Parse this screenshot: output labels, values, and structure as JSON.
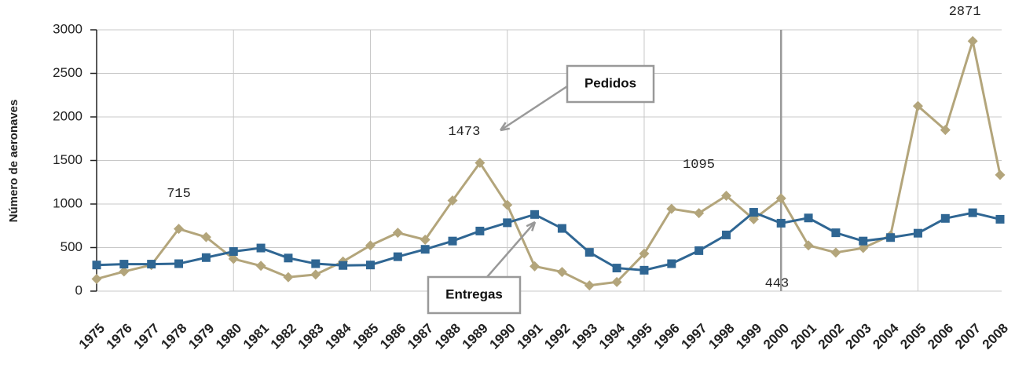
{
  "chart_data": {
    "type": "line",
    "y_label": "Número de aeronaves",
    "categories": [
      "1975",
      "1976",
      "1977",
      "1978",
      "1979",
      "1980",
      "1981",
      "1982",
      "1983",
      "1984",
      "1985",
      "1986",
      "1987",
      "1988",
      "1989",
      "1990",
      "1991",
      "1992",
      "1993",
      "1994",
      "1995",
      "1996",
      "1997",
      "1998",
      "1999",
      "2000",
      "2001",
      "2002",
      "2003",
      "2004",
      "2005",
      "2006",
      "2007",
      "2008"
    ],
    "series": [
      {
        "name": "Pedidos",
        "color": "#b3a57b",
        "marker": "diamond",
        "values": [
          140,
          225,
          300,
          715,
          620,
          370,
          290,
          160,
          190,
          340,
          525,
          670,
          590,
          1040,
          1473,
          990,
          285,
          220,
          65,
          105,
          430,
          945,
          895,
          1095,
          825,
          1065,
          525,
          443,
          495,
          640,
          2125,
          1850,
          2871,
          1335
        ],
        "value_labels": [
          null,
          null,
          null,
          "715",
          null,
          null,
          null,
          null,
          null,
          null,
          null,
          null,
          null,
          null,
          "1473",
          null,
          null,
          null,
          null,
          null,
          null,
          null,
          null,
          "1095",
          null,
          null,
          null,
          "443",
          null,
          null,
          null,
          null,
          "2871",
          null
        ]
      },
      {
        "name": "Entregas",
        "color": "#2f6693",
        "marker": "square",
        "values": [
          300,
          310,
          310,
          315,
          385,
          455,
          495,
          380,
          315,
          295,
          300,
          395,
          480,
          575,
          690,
          785,
          880,
          720,
          445,
          265,
          240,
          315,
          465,
          645,
          905,
          780,
          840,
          670,
          575,
          615,
          665,
          835,
          900,
          825
        ]
      }
    ],
    "ylim": [
      0,
      3000
    ],
    "yticks": [
      0,
      500,
      1000,
      1500,
      2000,
      2500,
      3000
    ],
    "grid": true
  }
}
